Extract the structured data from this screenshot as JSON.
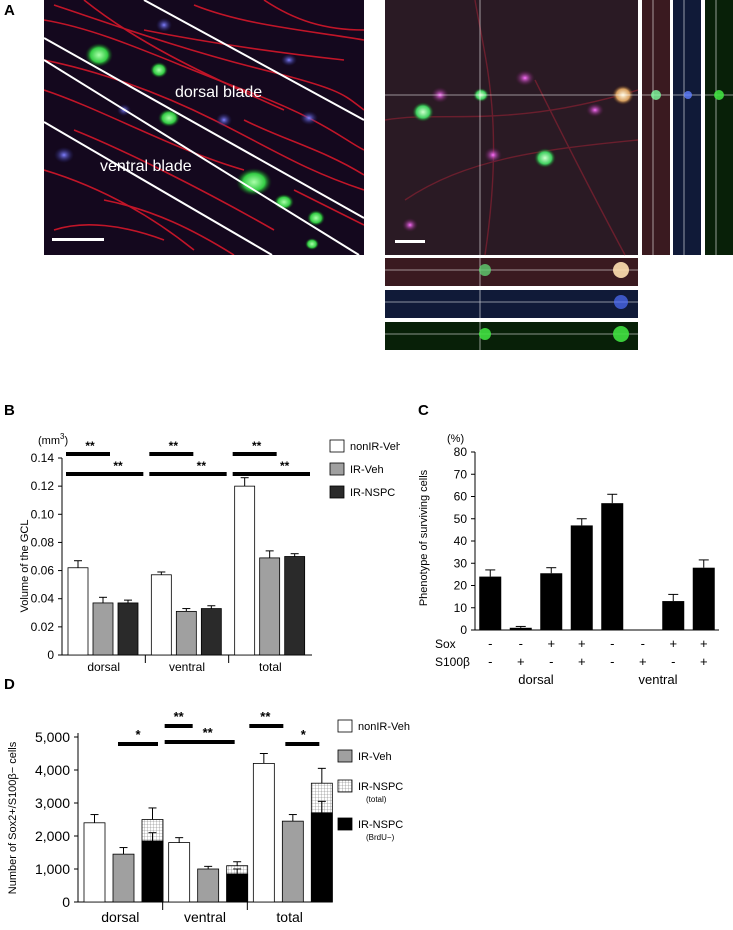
{
  "panels": {
    "a": {
      "letter": "A",
      "dorsal_label": "dorsal blade",
      "ventral_label": "ventral blade"
    },
    "b": {
      "letter": "B"
    },
    "c": {
      "letter": "C"
    },
    "d": {
      "letter": "D"
    }
  },
  "chart_data": [
    {
      "id": "B",
      "type": "bar",
      "ylabel": "Volume of the GCL",
      "unit_prefix": "(mm",
      "unit_exp": "3",
      "unit_suffix": ")",
      "ylim": [
        0,
        0.14
      ],
      "yticks": [
        "0",
        "0.02",
        "0.04",
        "0.06",
        "0.08",
        "0.10",
        "0.12",
        "0.14"
      ],
      "categories": [
        "dorsal",
        "ventral",
        "total"
      ],
      "series": [
        {
          "name": "nonIR-Veh",
          "color": "#ffffff",
          "values": [
            0.062,
            0.057,
            0.12
          ],
          "errors": [
            0.005,
            0.002,
            0.006
          ]
        },
        {
          "name": "IR-Veh",
          "color": "#a0a0a0",
          "values": [
            0.037,
            0.031,
            0.069
          ],
          "errors": [
            0.004,
            0.002,
            0.005
          ]
        },
        {
          "name": "IR-NSPC",
          "color": "#2a2a2a",
          "values": [
            0.037,
            0.033,
            0.07
          ],
          "errors": [
            0.002,
            0.002,
            0.002
          ]
        }
      ],
      "significance": [
        {
          "label": "**",
          "group": 0
        },
        {
          "label": "**",
          "group": 0
        },
        {
          "label": "**",
          "group": 1
        },
        {
          "label": "**",
          "group": 1
        },
        {
          "label": "**",
          "group": 2
        },
        {
          "label": "**",
          "group": 2
        }
      ]
    },
    {
      "id": "C",
      "type": "bar",
      "ylabel": "Phenotype of surviving cells",
      "unit": "(%)",
      "ylim": [
        0,
        80
      ],
      "yticks": [
        "0",
        "10",
        "20",
        "30",
        "40",
        "50",
        "60",
        "70",
        "80"
      ],
      "values": [
        24,
        1,
        25.5,
        47,
        57,
        0,
        13,
        28
      ],
      "errors": [
        3,
        0.6,
        2.5,
        3,
        4,
        0,
        3,
        3.5
      ],
      "row_labels": [
        "Sox",
        "S100β"
      ],
      "sox": [
        "-",
        "-",
        "+",
        "+",
        "-",
        "-",
        "+",
        "+"
      ],
      "s100": [
        "-",
        "+",
        "-",
        "+",
        "-",
        "+",
        "-",
        "+"
      ],
      "groups": [
        "dorsal",
        "ventral"
      ]
    },
    {
      "id": "D",
      "type": "bar",
      "ylabel": "Number of Sox2+/S100β− cells",
      "ylim": [
        0,
        5000
      ],
      "yticks": [
        "0",
        "1,000",
        "2,000",
        "3,000",
        "4,000",
        "5,000"
      ],
      "categories": [
        "dorsal",
        "ventral",
        "total"
      ],
      "series": [
        {
          "name": "nonIR-Veh",
          "values": [
            2400,
            1800,
            4200
          ],
          "errors": [
            250,
            150,
            300
          ]
        },
        {
          "name": "IR-Veh",
          "values": [
            1450,
            1000,
            2450
          ],
          "errors": [
            200,
            80,
            200
          ]
        },
        {
          "name": "IR-NSPC",
          "sub": "(total)",
          "values": [
            2500,
            1100,
            3600
          ],
          "errors": [
            350,
            120,
            450
          ]
        },
        {
          "name": "IR-NSPC",
          "sub": "(BrdU−)",
          "values": [
            1850,
            850,
            2700
          ],
          "errors": [
            250,
            150,
            350
          ]
        }
      ],
      "significance": [
        {
          "label": "*",
          "group": 0
        },
        {
          "label": "**",
          "group": 1
        },
        {
          "label": "**",
          "group": 1
        },
        {
          "label": "**",
          "group": 2
        },
        {
          "label": "*",
          "group": 2
        }
      ]
    }
  ]
}
